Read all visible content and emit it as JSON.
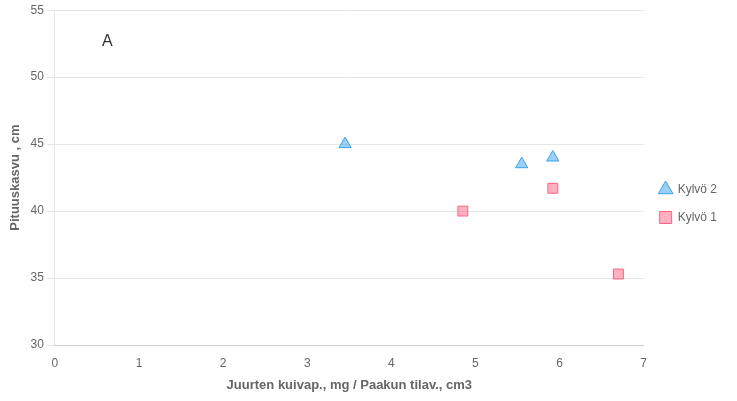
{
  "chart_data": {
    "type": "scatter",
    "xlabel": "Juurten kuivap., mg / Paakun tilav., cm3",
    "ylabel": "Pituuskasvu , cm",
    "annotations": [
      "A"
    ],
    "series": [
      {
        "name": "Kylvö 2",
        "marker": "triangle",
        "x": [
          3.45,
          5.55,
          5.92
        ],
        "values": [
          45,
          43.5,
          44
        ]
      },
      {
        "name": "Kylvö 1",
        "marker": "square",
        "x": [
          4.85,
          5.92,
          6.7
        ],
        "values": [
          40,
          41.7,
          35.3
        ]
      }
    ],
    "xlim": [
      0,
      7
    ],
    "xticks": [
      0,
      1,
      2,
      3,
      4,
      5,
      6,
      7
    ],
    "ylim": [
      30,
      55
    ],
    "yticks": [
      30,
      35,
      40,
      45,
      50,
      55
    ],
    "grid": "y",
    "legend": "right"
  }
}
